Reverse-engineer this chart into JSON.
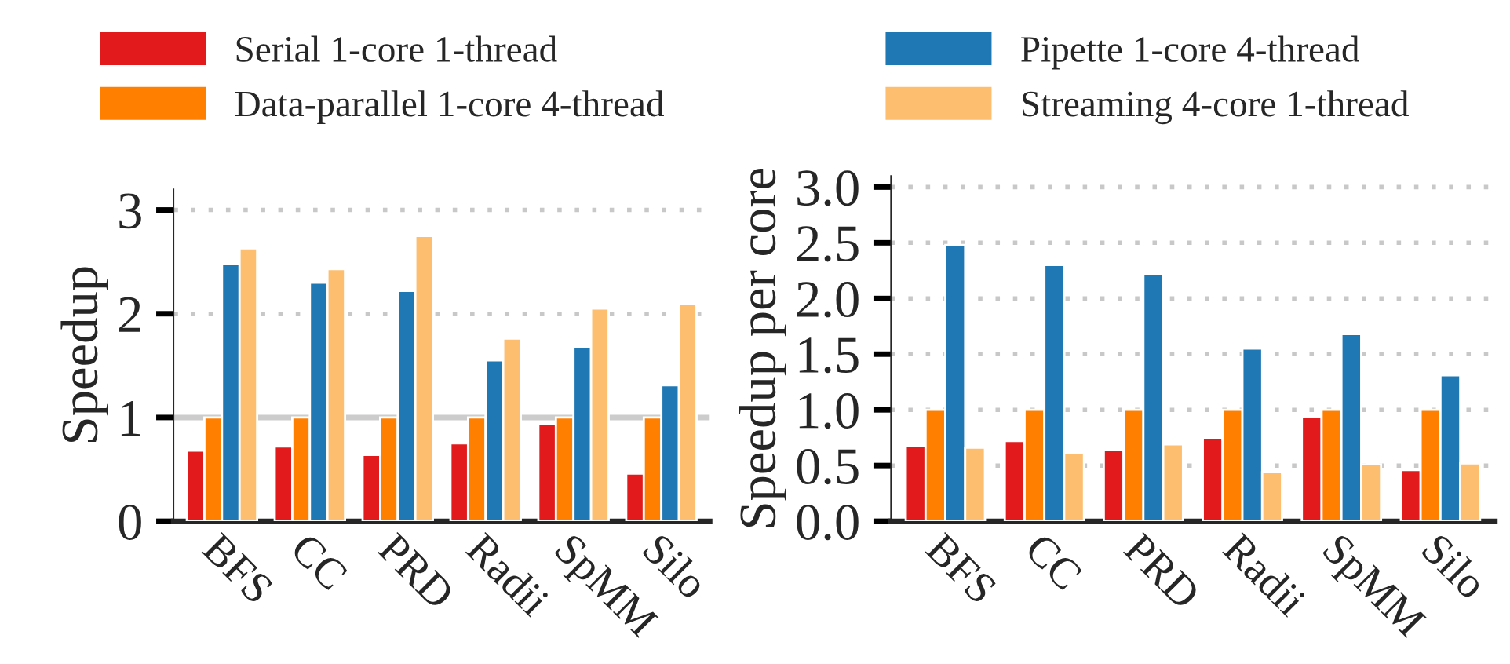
{
  "chart_data": [
    {
      "type": "bar",
      "ylabel": "Speedup",
      "categories": [
        "BFS",
        "CC",
        "PRD",
        "Radii",
        "SpMM",
        "Silo"
      ],
      "ylim": [
        0,
        3.2
      ],
      "yticks": [
        0,
        1,
        2,
        3
      ],
      "grid": "y",
      "legend": "top",
      "ref_lines": [
        {
          "axis": "y",
          "value": 1,
          "color": "#cccccc"
        }
      ],
      "series": [
        {
          "name": "Serial 1-core 1-thread",
          "color": "#e31a1c",
          "values": [
            0.68,
            0.72,
            0.64,
            0.75,
            0.94,
            0.46
          ]
        },
        {
          "name": "Data-parallel 1-core 4-thread",
          "color": "#ff7f00",
          "values": [
            1.0,
            1.0,
            1.0,
            1.0,
            1.0,
            1.0
          ]
        },
        {
          "name": "Pipette 1-core 4-thread",
          "color": "#1f78b4",
          "values": [
            2.48,
            2.3,
            2.22,
            1.55,
            1.68,
            1.31
          ]
        },
        {
          "name": "Streaming 4-core 1-thread",
          "color": "#fdbf6f",
          "values": [
            2.63,
            2.43,
            2.75,
            1.76,
            2.05,
            2.1
          ]
        }
      ]
    },
    {
      "type": "bar",
      "ylabel": "Speedup per core",
      "categories": [
        "BFS",
        "CC",
        "PRD",
        "Radii",
        "SpMM",
        "Silo"
      ],
      "ylim": [
        0,
        3.1
      ],
      "yticks": [
        {
          "value": 0,
          "label": "0.0"
        },
        0.5,
        {
          "value": 1,
          "label": "1.0"
        },
        1.5,
        {
          "value": 2,
          "label": "2.0"
        },
        2.5,
        {
          "value": 3,
          "label": "3.0"
        }
      ],
      "grid": "y",
      "series": [
        {
          "color": "#e31a1c",
          "values": [
            0.68,
            0.72,
            0.64,
            0.75,
            0.94,
            0.46
          ]
        },
        {
          "color": "#ff7f00",
          "values": [
            1.0,
            1.0,
            1.0,
            1.0,
            1.0,
            1.0
          ]
        },
        {
          "color": "#1f78b4",
          "values": [
            2.48,
            2.3,
            2.22,
            1.55,
            1.68,
            1.31
          ]
        },
        {
          "color": "#fdbf6f",
          "values": [
            0.66,
            0.61,
            0.69,
            0.44,
            0.51,
            0.52
          ]
        }
      ]
    }
  ]
}
